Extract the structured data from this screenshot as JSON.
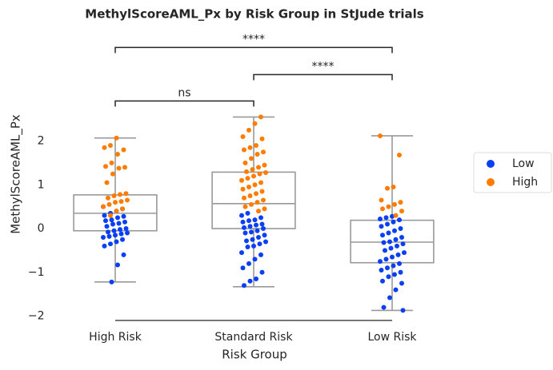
{
  "chart_data": {
    "type": "box-strip",
    "title": "MethylScoreAML_Px by Risk Group in StJude trials",
    "x_label": "Risk Group",
    "y_label": "MethylScoreAML_Px",
    "categories": [
      "High Risk",
      "Standard Risk",
      "Low Risk"
    ],
    "ylim": [
      -2.1,
      4.3
    ],
    "yticks": [
      {
        "value": -2,
        "label": "−2"
      },
      {
        "value": -1,
        "label": "−1"
      },
      0,
      1,
      2
    ],
    "boxes": [
      {
        "whislo": -1.22,
        "q1": -0.05,
        "med": 0.35,
        "q3": 0.77,
        "whishi": 2.07
      },
      {
        "whislo": -1.33,
        "q1": 0.0,
        "med": 0.57,
        "q3": 1.29,
        "whishi": 2.55
      },
      {
        "whislo": -1.87,
        "q1": -0.78,
        "med": -0.31,
        "q3": 0.19,
        "whishi": 2.12
      }
    ],
    "box_color": "#999999",
    "series": [
      {
        "name": "Low",
        "color": "#0a3ff5",
        "values": [
          [
            0.5,
            0.45,
            0.4,
            0.35,
            0.3,
            0.28,
            0.25,
            0.2,
            0.18,
            0.15,
            0.12,
            0.1,
            0.05,
            0.0,
            -0.02,
            -0.05,
            -0.08,
            -0.1,
            -0.12,
            -0.15,
            -0.18,
            -0.2,
            -0.25,
            -0.3,
            -0.35,
            -0.4,
            -0.6,
            -0.83,
            -1.22
          ],
          [
            0.35,
            0.3,
            0.25,
            0.2,
            0.18,
            0.15,
            0.1,
            0.08,
            0.05,
            0.02,
            0.0,
            -0.05,
            -0.08,
            -0.1,
            -0.15,
            -0.2,
            -0.25,
            -0.28,
            -0.3,
            -0.35,
            -0.4,
            -0.42,
            -0.55,
            -0.6,
            -0.7,
            -0.8,
            -0.9,
            -1.0,
            -1.15,
            -1.2,
            -1.3
          ],
          [
            0.28,
            0.25,
            0.22,
            0.2,
            0.15,
            0.1,
            0.05,
            0.0,
            -0.05,
            -0.1,
            -0.15,
            -0.2,
            -0.25,
            -0.3,
            -0.32,
            -0.35,
            -0.4,
            -0.45,
            -0.5,
            -0.55,
            -0.6,
            -0.65,
            -0.7,
            -0.75,
            -0.8,
            -0.85,
            -0.9,
            -0.95,
            -1.0,
            -1.05,
            -1.1,
            -1.2,
            -1.25,
            -1.4,
            -1.58,
            -1.8,
            -1.87
          ]
        ]
      },
      {
        "name": "High",
        "color": "#ff7c00",
        "values": [
          [
            2.07,
            1.9,
            1.85,
            1.8,
            1.7,
            1.5,
            1.42,
            1.4,
            1.38,
            1.25,
            1.05,
            0.8,
            0.78,
            0.75,
            0.7,
            0.65,
            0.62,
            0.6,
            0.55,
            0.5,
            0.45,
            0.4,
            0.3
          ],
          [
            2.55,
            2.4,
            2.25,
            2.1,
            2.05,
            1.9,
            1.85,
            1.8,
            1.75,
            1.7,
            1.6,
            1.5,
            1.45,
            1.4,
            1.35,
            1.3,
            1.28,
            1.25,
            1.2,
            1.15,
            1.1,
            1.05,
            1.0,
            0.95,
            0.9,
            0.85,
            0.8,
            0.75,
            0.7,
            0.65,
            0.6,
            0.55,
            0.5,
            0.45,
            0.4
          ],
          [
            2.12,
            1.68,
            0.95,
            0.92,
            0.65,
            0.6,
            0.55,
            0.5,
            0.45,
            0.4,
            0.3
          ]
        ]
      }
    ],
    "annotations": [
      {
        "from": "High Risk",
        "to": "Standard Risk",
        "text": "ns"
      },
      {
        "from": "Standard Risk",
        "to": "Low Risk",
        "text": "****"
      },
      {
        "from": "High Risk",
        "to": "Low Risk",
        "text": "****"
      }
    ],
    "legend_position": "right"
  }
}
